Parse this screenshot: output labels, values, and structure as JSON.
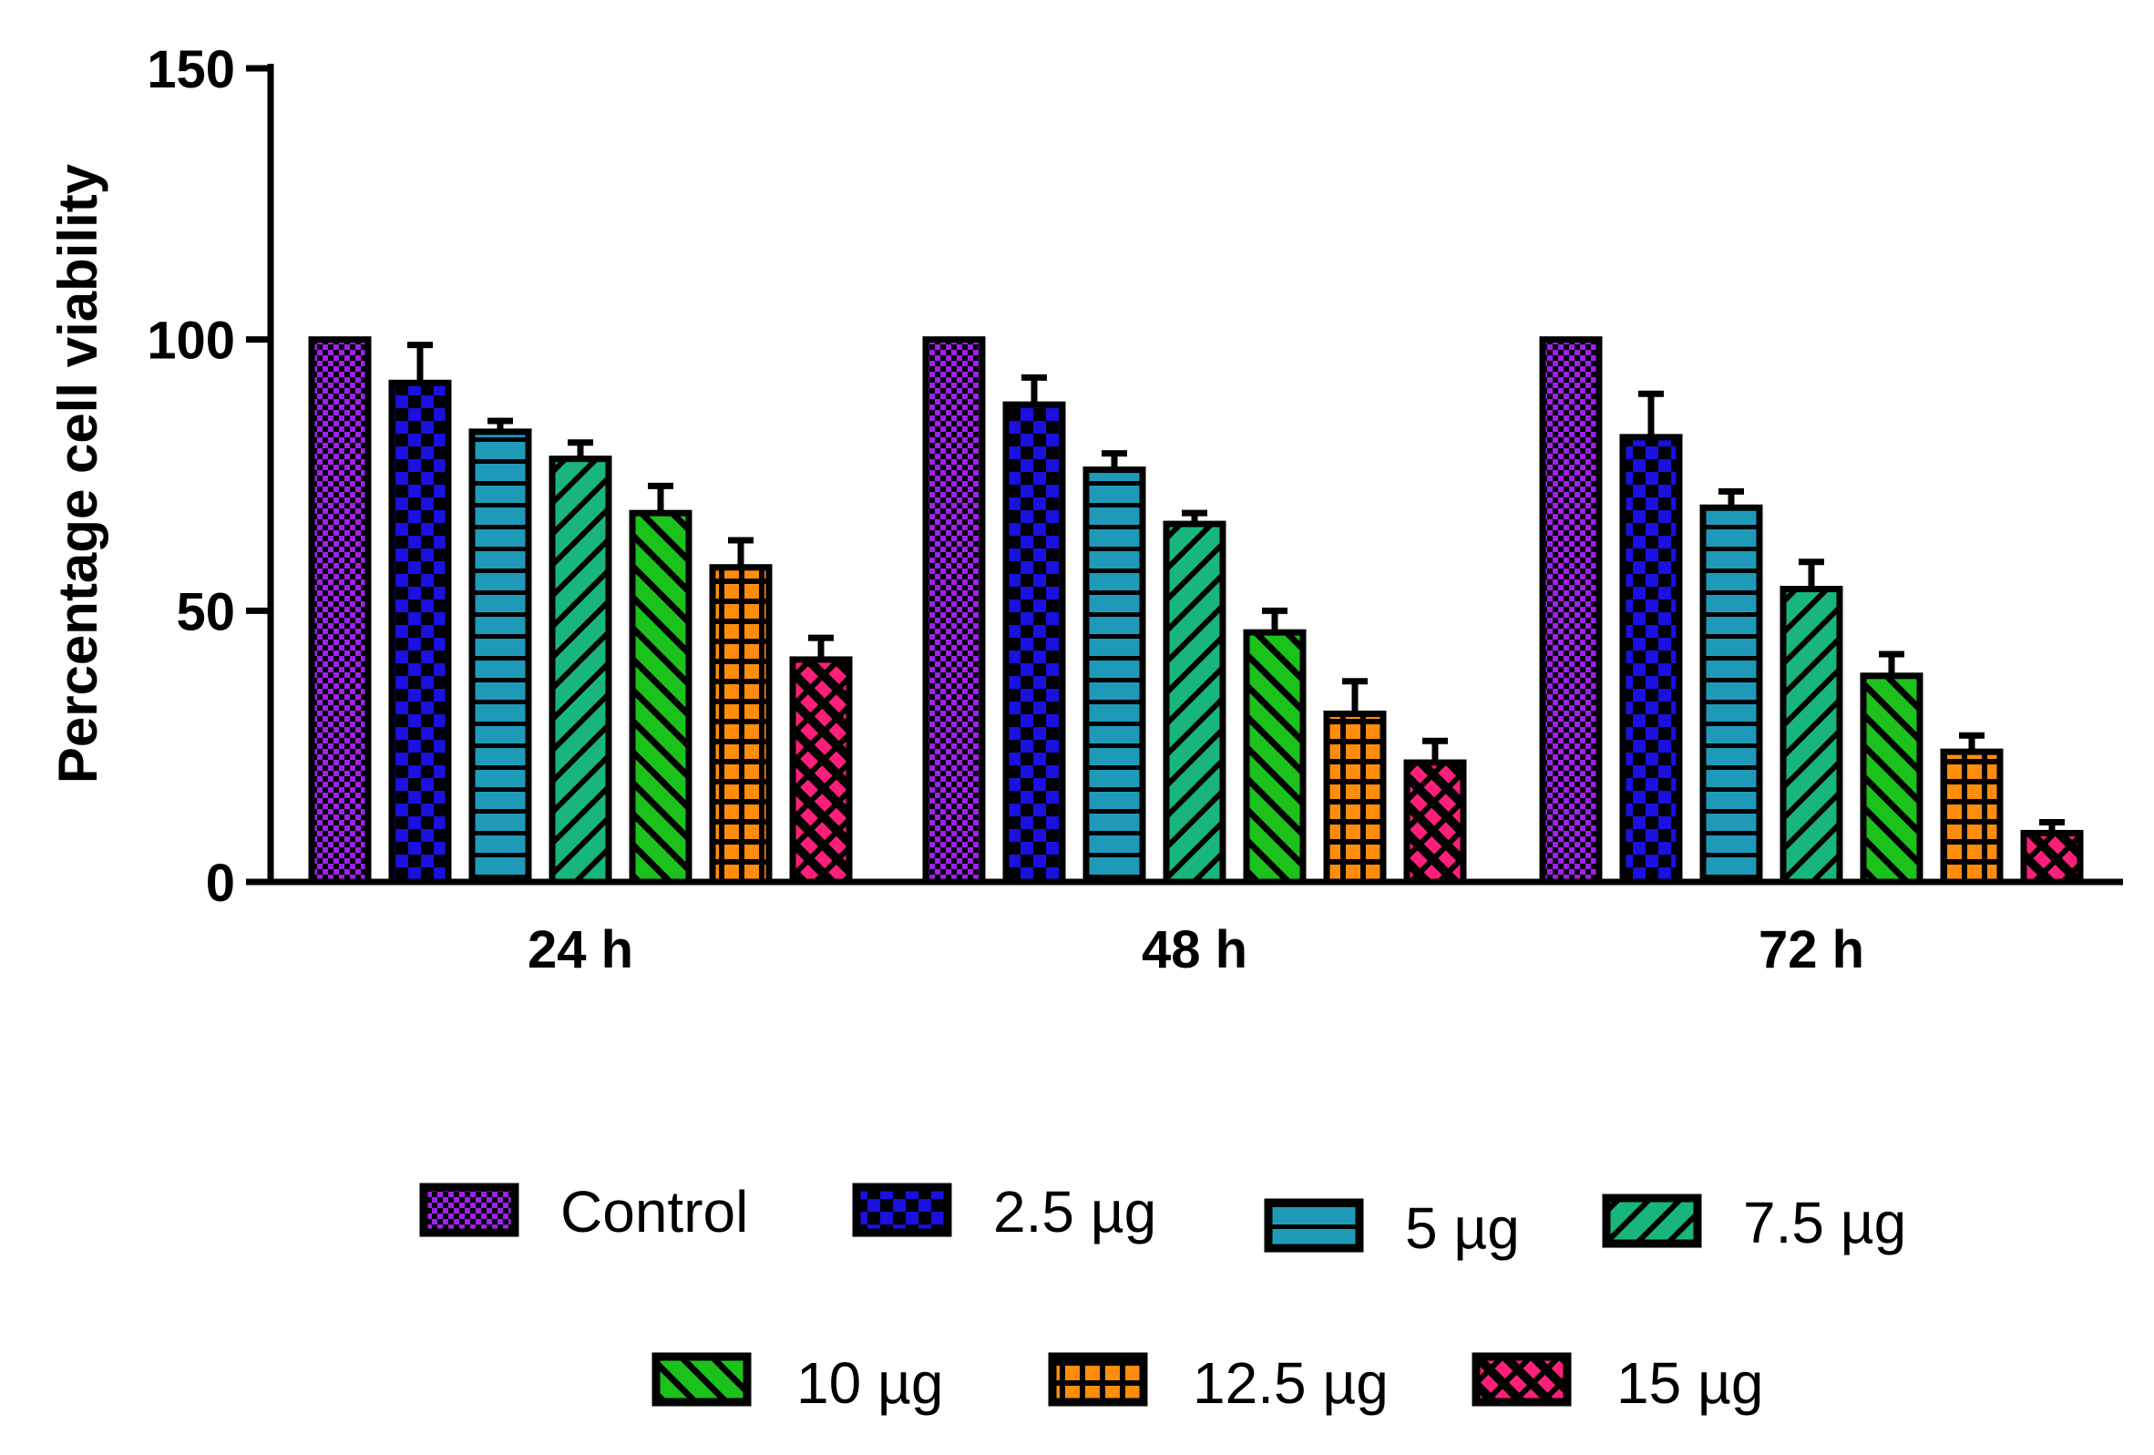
{
  "chart_data": {
    "type": "bar",
    "title": "",
    "xlabel": "",
    "ylabel": "Percentage cell viability",
    "ylim": [
      0,
      150
    ],
    "yticks": [
      0,
      50,
      100,
      150
    ],
    "ytick_labels": [
      "0",
      "50",
      "100",
      "150"
    ],
    "grid": false,
    "legend_position": "bottom",
    "categories": [
      "24 h",
      "48 h",
      "72 h"
    ],
    "series": [
      {
        "name": "Control",
        "color": "#a020f0",
        "pattern": "check-small",
        "values": [
          100,
          100,
          100
        ],
        "errors": [
          0,
          0,
          0
        ]
      },
      {
        "name": "2.5 µg",
        "color": "#1a10e0",
        "pattern": "check-large",
        "values": [
          92,
          88,
          82
        ],
        "errors": [
          7,
          5,
          8
        ]
      },
      {
        "name": "5 µg",
        "color": "#1e9ab8",
        "pattern": "horizontal",
        "values": [
          83,
          76,
          69
        ],
        "errors": [
          2,
          3,
          3
        ]
      },
      {
        "name": "7.5 µg",
        "color": "#19b679",
        "pattern": "diag-up",
        "values": [
          78,
          66,
          54
        ],
        "errors": [
          3,
          2,
          5
        ]
      },
      {
        "name": "10 µg",
        "color": "#1cc11c",
        "pattern": "diag-down",
        "values": [
          68,
          46,
          38
        ],
        "errors": [
          5,
          4,
          4
        ]
      },
      {
        "name": "12.5 µg",
        "color": "#ff8c0a",
        "pattern": "grid",
        "values": [
          58,
          31,
          24
        ],
        "errors": [
          5,
          6,
          3
        ]
      },
      {
        "name": "15 µg",
        "color": "#ff1f7a",
        "pattern": "dash-diag",
        "values": [
          41,
          22,
          9
        ],
        "errors": [
          4,
          4,
          2
        ]
      }
    ]
  }
}
